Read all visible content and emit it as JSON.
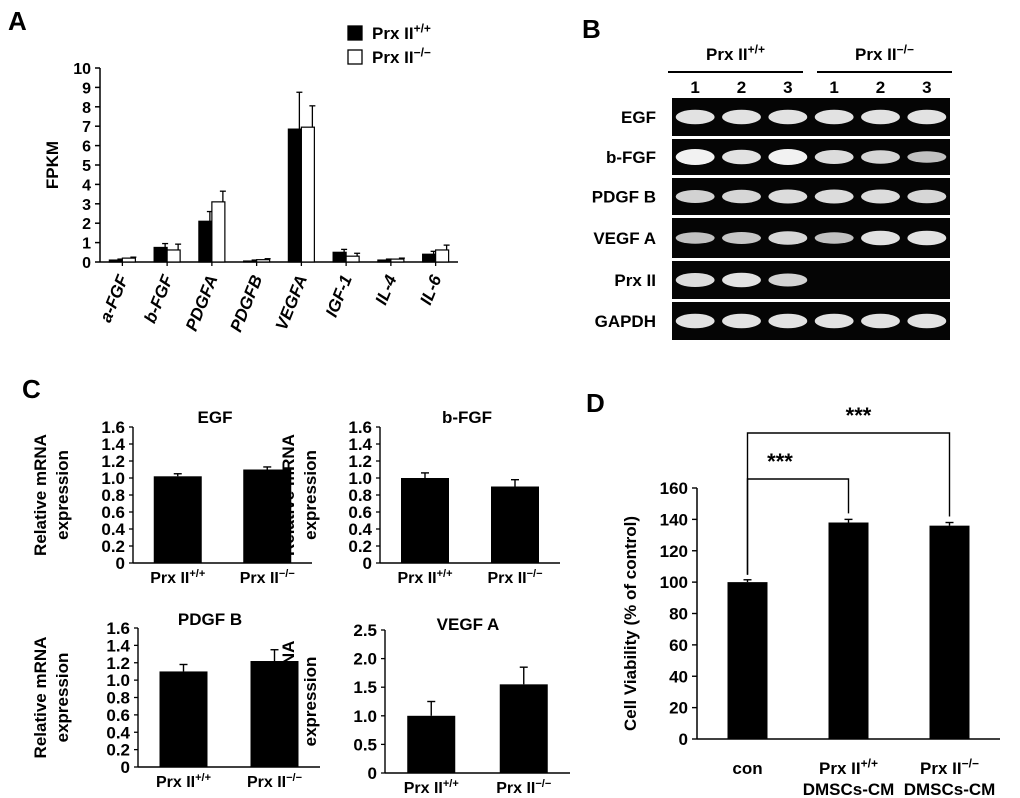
{
  "panels": {
    "A": "A",
    "B": "B",
    "C": "C",
    "D": "D"
  },
  "chart_data": [
    {
      "id": "A",
      "type": "bar",
      "ylabel": "FPKM",
      "ylim": [
        0,
        10
      ],
      "yticks": [
        "0",
        "1",
        "2",
        "3",
        "4",
        "5",
        "6",
        "7",
        "8",
        "9",
        "10"
      ],
      "categories": [
        "a-FGF",
        "b-FGF",
        "PDGFA",
        "PDGFB",
        "VEGFA",
        "IGF-1",
        "IL-4",
        "IL-6"
      ],
      "legend_position": "top-right",
      "series": [
        {
          "name": "Prx II+/+",
          "base": "Prx II",
          "sup": "+/+",
          "color": "#000000",
          "values": [
            0.1,
            0.75,
            2.1,
            0.05,
            6.85,
            0.5,
            0.1,
            0.4
          ],
          "errors": [
            0.05,
            0.2,
            0.5,
            0.05,
            1.9,
            0.15,
            0.05,
            0.15
          ]
        },
        {
          "name": "Prx II−/−",
          "base": "Prx II",
          "sup": "−/−",
          "color": "#ffffff",
          "values": [
            0.2,
            0.62,
            3.1,
            0.12,
            6.95,
            0.3,
            0.15,
            0.62
          ],
          "errors": [
            0.05,
            0.3,
            0.55,
            0.05,
            1.1,
            0.15,
            0.05,
            0.25
          ]
        }
      ]
    },
    {
      "id": "C1",
      "type": "bar",
      "title": "EGF",
      "ylabel": [
        "Relative mRNA",
        "expression"
      ],
      "ylim": [
        0,
        1.6
      ],
      "yticks": [
        "0",
        "0.2",
        "0.4",
        "0.6",
        "0.8",
        "1.0",
        "1.2",
        "1.4",
        "1.6"
      ],
      "categories": [
        {
          "base": "Prx II",
          "sup": "+/+"
        },
        {
          "base": "Prx II",
          "sup": "−/−"
        }
      ],
      "values": [
        1.02,
        1.1
      ],
      "errors": [
        0.03,
        0.03
      ]
    },
    {
      "id": "C2",
      "type": "bar",
      "title": "b-FGF",
      "ylabel": [
        "Relative mRNA",
        "expression"
      ],
      "ylim": [
        0,
        1.6
      ],
      "yticks": [
        "0",
        "0.2",
        "0.4",
        "0.6",
        "0.8",
        "1.0",
        "1.2",
        "1.4",
        "1.6"
      ],
      "categories": [
        {
          "base": "Prx II",
          "sup": "+/+"
        },
        {
          "base": "Prx II",
          "sup": "−/−"
        }
      ],
      "values": [
        1.0,
        0.9
      ],
      "errors": [
        0.06,
        0.08
      ]
    },
    {
      "id": "C3",
      "type": "bar",
      "title": "PDGF B",
      "ylabel": [
        "Relative mRNA",
        "expression"
      ],
      "ylim": [
        0,
        1.6
      ],
      "yticks": [
        "0",
        "0.2",
        "0.4",
        "0.6",
        "0.8",
        "1.0",
        "1.2",
        "1.4",
        "1.6"
      ],
      "categories": [
        {
          "base": "Prx II",
          "sup": "+/+"
        },
        {
          "base": "Prx II",
          "sup": "−/−"
        }
      ],
      "values": [
        1.1,
        1.22
      ],
      "errors": [
        0.08,
        0.13
      ]
    },
    {
      "id": "C4",
      "type": "bar",
      "title": "VEGF A",
      "ylabel": [
        "Relative mRNA",
        "expression"
      ],
      "ylim": [
        0,
        2.5
      ],
      "yticks": [
        "0",
        "0.5",
        "1.0",
        "1.5",
        "2.0",
        "2.5"
      ],
      "categories": [
        {
          "base": "Prx II",
          "sup": "+/+"
        },
        {
          "base": "Prx II",
          "sup": "−/−"
        }
      ],
      "values": [
        1.0,
        1.55
      ],
      "errors": [
        0.25,
        0.3
      ]
    },
    {
      "id": "D",
      "type": "bar",
      "ylabel": "Cell Viability (% of control)",
      "ylim": [
        0,
        160
      ],
      "yticks": [
        "0",
        "20",
        "40",
        "60",
        "80",
        "100",
        "120",
        "140",
        "160"
      ],
      "categories": [
        {
          "lines": [
            {
              "base": "con"
            }
          ]
        },
        {
          "lines": [
            {
              "base": "Prx II",
              "sup": "+/+"
            },
            {
              "base": "DMSCs-CM"
            }
          ]
        },
        {
          "lines": [
            {
              "base": "Prx II",
              "sup": "−/−"
            },
            {
              "base": "DMSCs-CM"
            }
          ]
        }
      ],
      "values": [
        100,
        138,
        136
      ],
      "errors": [
        1.5,
        2,
        2
      ],
      "annotations": [
        {
          "from": 0,
          "to": 1,
          "label": "***"
        },
        {
          "from": 0,
          "to": 2,
          "label": "***"
        }
      ]
    }
  ],
  "gel": {
    "groups": [
      {
        "base": "Prx II",
        "sup": "+/+",
        "lanes": [
          "1",
          "2",
          "3"
        ]
      },
      {
        "base": "Prx II",
        "sup": "−/−",
        "lanes": [
          "1",
          "2",
          "3"
        ]
      }
    ],
    "rows": [
      {
        "label": "EGF",
        "bands": [
          0.85,
          0.85,
          0.85,
          0.85,
          0.85,
          0.85
        ]
      },
      {
        "label": "b-FGF",
        "bands": [
          1.0,
          0.85,
          1.0,
          0.8,
          0.75,
          0.55
        ]
      },
      {
        "label": "PDGF B",
        "bands": [
          0.7,
          0.75,
          0.8,
          0.8,
          0.8,
          0.75
        ]
      },
      {
        "label": "VEGF A",
        "bands": [
          0.55,
          0.6,
          0.75,
          0.55,
          0.85,
          0.85
        ]
      },
      {
        "label": "Prx II",
        "bands": [
          0.8,
          0.85,
          0.7,
          0,
          0,
          0
        ]
      },
      {
        "label": "GAPDH",
        "bands": [
          0.85,
          0.85,
          0.85,
          0.85,
          0.85,
          0.85
        ]
      }
    ]
  }
}
